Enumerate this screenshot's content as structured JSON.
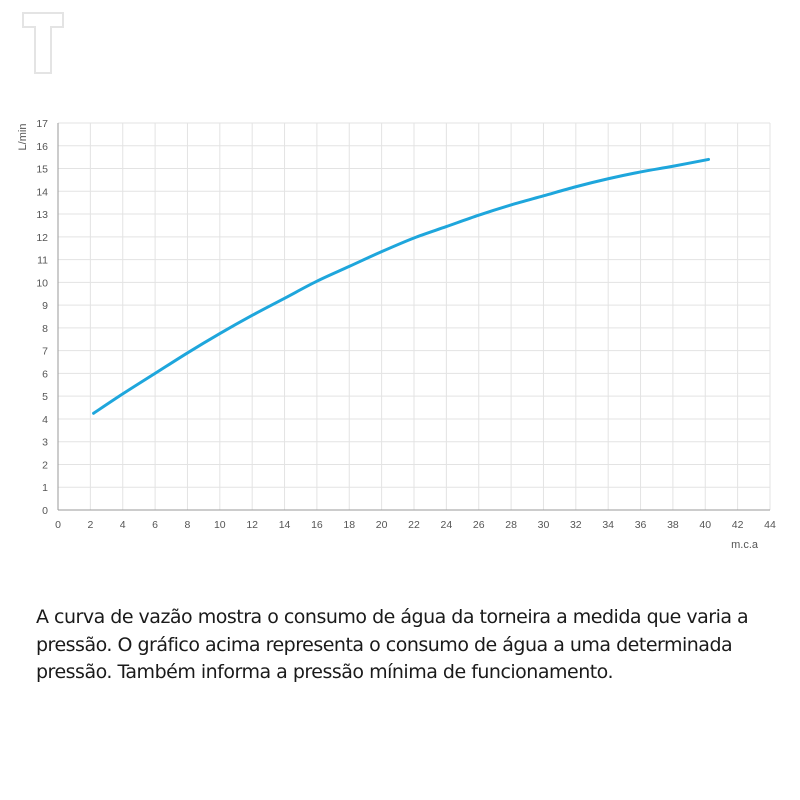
{
  "logo": {
    "icon": "t-logo-icon",
    "color": "#e4e4e4"
  },
  "chart_data": {
    "type": "line",
    "xlabel": "m.c.a",
    "ylabel": "L/min",
    "xlim": [
      0,
      44
    ],
    "ylim": [
      0,
      17
    ],
    "xticks": [
      0,
      2,
      4,
      6,
      8,
      10,
      12,
      14,
      16,
      18,
      20,
      22,
      24,
      26,
      28,
      30,
      32,
      34,
      36,
      38,
      40,
      42,
      44
    ],
    "yticks": [
      0,
      1,
      2,
      3,
      4,
      5,
      6,
      7,
      8,
      9,
      10,
      11,
      12,
      13,
      14,
      15,
      16,
      17
    ],
    "grid": true,
    "series": [
      {
        "color": "#1ea6dc",
        "x": [
          2.2,
          4,
          6,
          8,
          10,
          12,
          14,
          16,
          18,
          20,
          22,
          24,
          26,
          28,
          30,
          32,
          34,
          36,
          38,
          40.2
        ],
        "y": [
          4.25,
          5.1,
          6.0,
          6.9,
          7.75,
          8.55,
          9.3,
          10.05,
          10.7,
          11.35,
          11.95,
          12.45,
          12.95,
          13.4,
          13.8,
          14.2,
          14.55,
          14.85,
          15.1,
          15.4
        ]
      }
    ]
  },
  "caption": {
    "text": "A curva de vazão mostra o consumo de água da torneira a medida que varia a pressão. O gráfico acima representa o consumo de água a uma determinada pressão. Também informa a pressão mínima de funcionamento."
  }
}
